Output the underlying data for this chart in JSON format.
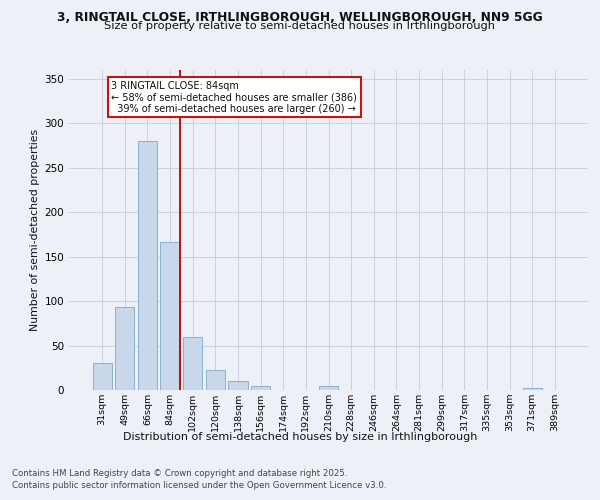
{
  "title_line1": "3, RINGTAIL CLOSE, IRTHLINGBOROUGH, WELLINGBOROUGH, NN9 5GG",
  "title_line2": "Size of property relative to semi-detached houses in Irthlingborough",
  "xlabel": "Distribution of semi-detached houses by size in Irthlingborough",
  "ylabel": "Number of semi-detached properties",
  "categories": [
    "31sqm",
    "49sqm",
    "66sqm",
    "84sqm",
    "102sqm",
    "120sqm",
    "138sqm",
    "156sqm",
    "174sqm",
    "192sqm",
    "210sqm",
    "228sqm",
    "246sqm",
    "264sqm",
    "281sqm",
    "299sqm",
    "317sqm",
    "335sqm",
    "353sqm",
    "371sqm",
    "389sqm"
  ],
  "values": [
    30,
    93,
    280,
    167,
    60,
    22,
    10,
    5,
    0,
    0,
    4,
    0,
    0,
    0,
    0,
    0,
    0,
    0,
    0,
    2,
    0
  ],
  "bar_color": "#c8d8ea",
  "bar_edge_color": "#7aaac8",
  "subject_bar_index": 3,
  "subject_label": "3 RINGTAIL CLOSE: 84sqm",
  "pct_smaller": 58,
  "pct_smaller_count": 386,
  "pct_larger": 39,
  "pct_larger_count": 260,
  "subject_line_color": "#bb1111",
  "annotation_box_edge_color": "#cc1111",
  "ylim": [
    0,
    360
  ],
  "yticks": [
    0,
    50,
    100,
    150,
    200,
    250,
    300,
    350
  ],
  "bg_color": "#edf1f7",
  "plot_bg_color": "#edf1f7",
  "grid_color": "#c5cdd9",
  "footer_line1": "Contains HM Land Registry data © Crown copyright and database right 2025.",
  "footer_line2": "Contains public sector information licensed under the Open Government Licence v3.0."
}
